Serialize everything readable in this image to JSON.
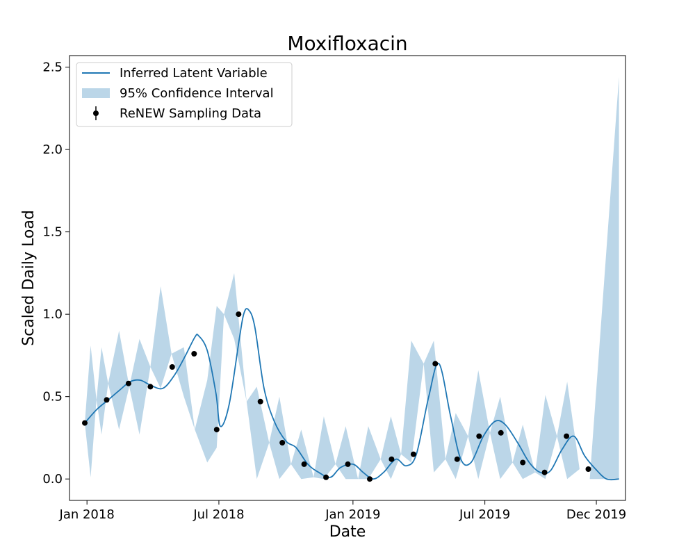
{
  "chart_data": {
    "type": "line",
    "title": "Moxifloxacin",
    "xlabel": "Date",
    "ylabel": "Scaled Daily Load",
    "x_range": [
      "2017-12-08",
      "2020-01-10"
    ],
    "ylim": [
      -0.13,
      2.57
    ],
    "grid": false,
    "legend_position": "top-left",
    "x_ticks": [
      {
        "date": "2018-01-01",
        "label": "Jan 2018"
      },
      {
        "date": "2018-07-01",
        "label": "Jul 2018"
      },
      {
        "date": "2019-01-01",
        "label": "Jan 2019"
      },
      {
        "date": "2019-07-01",
        "label": "Jul 2019"
      },
      {
        "date": "2019-12-01",
        "label": "Dec 2019"
      }
    ],
    "y_ticks": [
      {
        "value": 0.0,
        "label": "0.0"
      },
      {
        "value": 0.5,
        "label": "0.5"
      },
      {
        "value": 1.0,
        "label": "1.0"
      },
      {
        "value": 1.5,
        "label": "1.5"
      },
      {
        "value": 2.0,
        "label": "2.0"
      },
      {
        "value": 2.5,
        "label": "2.5"
      }
    ],
    "series": [
      {
        "name": "Inferred Latent Variable",
        "kind": "line",
        "color": "#1f77b4",
        "points": [
          [
            "2017-12-29",
            0.34
          ],
          [
            "2018-01-14",
            0.42
          ],
          [
            "2018-01-30",
            0.48
          ],
          [
            "2018-02-15",
            0.54
          ],
          [
            "2018-03-01",
            0.59
          ],
          [
            "2018-03-15",
            0.6
          ],
          [
            "2018-03-29",
            0.57
          ],
          [
            "2018-04-15",
            0.55
          ],
          [
            "2018-05-01",
            0.63
          ],
          [
            "2018-05-15",
            0.74
          ],
          [
            "2018-05-29",
            0.86
          ],
          [
            "2018-06-03",
            0.87
          ],
          [
            "2018-06-15",
            0.78
          ],
          [
            "2018-06-27",
            0.52
          ],
          [
            "2018-07-03",
            0.32
          ],
          [
            "2018-07-15",
            0.45
          ],
          [
            "2018-07-29",
            0.85
          ],
          [
            "2018-08-04",
            1.0
          ],
          [
            "2018-08-10",
            1.03
          ],
          [
            "2018-08-19",
            0.93
          ],
          [
            "2018-09-01",
            0.55
          ],
          [
            "2018-09-15",
            0.35
          ],
          [
            "2018-10-01",
            0.23
          ],
          [
            "2018-10-15",
            0.19
          ],
          [
            "2018-10-31",
            0.09
          ],
          [
            "2018-11-15",
            0.04
          ],
          [
            "2018-12-01",
            0.01
          ],
          [
            "2018-12-15",
            0.07
          ],
          [
            "2019-01-01",
            0.09
          ],
          [
            "2019-01-15",
            0.04
          ],
          [
            "2019-01-29",
            0.0
          ],
          [
            "2019-02-12",
            0.04
          ],
          [
            "2019-03-01",
            0.12
          ],
          [
            "2019-03-15",
            0.08
          ],
          [
            "2019-03-29",
            0.15
          ],
          [
            "2019-04-15",
            0.5
          ],
          [
            "2019-04-29",
            0.7
          ],
          [
            "2019-05-15",
            0.38
          ],
          [
            "2019-05-29",
            0.12
          ],
          [
            "2019-06-12",
            0.1
          ],
          [
            "2019-06-29",
            0.26
          ],
          [
            "2019-07-15",
            0.35
          ],
          [
            "2019-07-29",
            0.33
          ],
          [
            "2019-08-15",
            0.22
          ],
          [
            "2019-08-31",
            0.1
          ],
          [
            "2019-09-15",
            0.04
          ],
          [
            "2019-09-29",
            0.05
          ],
          [
            "2019-10-15",
            0.18
          ],
          [
            "2019-10-31",
            0.26
          ],
          [
            "2019-11-15",
            0.14
          ],
          [
            "2019-11-30",
            0.06
          ],
          [
            "2019-12-15",
            0.0
          ],
          [
            "2020-01-01",
            0.0
          ]
        ]
      },
      {
        "name": "95% Confidence Interval",
        "kind": "band",
        "color": "#1f77b4",
        "opacity": 0.3,
        "points": [
          [
            "2017-12-29",
            0.34,
            0.34
          ],
          [
            "2018-01-06",
            0.01,
            0.81
          ],
          [
            "2018-01-14",
            0.48,
            0.48
          ],
          [
            "2018-01-21",
            0.27,
            0.8
          ],
          [
            "2018-01-30",
            0.58,
            0.58
          ],
          [
            "2018-02-14",
            0.3,
            0.9
          ],
          [
            "2018-02-28",
            0.56,
            0.56
          ],
          [
            "2018-03-14",
            0.27,
            0.85
          ],
          [
            "2018-03-29",
            0.68,
            0.68
          ],
          [
            "2018-04-12",
            0.55,
            1.17
          ],
          [
            "2018-04-27",
            0.76,
            0.76
          ],
          [
            "2018-05-14",
            0.5,
            0.8
          ],
          [
            "2018-05-29",
            0.3,
            0.3
          ],
          [
            "2018-06-15",
            0.1,
            0.6
          ],
          [
            "2018-06-28",
            0.19,
            1.05
          ],
          [
            "2018-07-08",
            1.0,
            1.0
          ],
          [
            "2018-07-22",
            0.85,
            1.25
          ],
          [
            "2018-08-08",
            0.47,
            0.47
          ],
          [
            "2018-08-22",
            0.0,
            0.56
          ],
          [
            "2018-09-08",
            0.22,
            0.22
          ],
          [
            "2018-09-22",
            0.0,
            0.5
          ],
          [
            "2018-10-08",
            0.09,
            0.09
          ],
          [
            "2018-10-22",
            0.0,
            0.3
          ],
          [
            "2018-11-08",
            0.01,
            0.01
          ],
          [
            "2018-11-22",
            0.0,
            0.38
          ],
          [
            "2018-12-08",
            0.09,
            0.09
          ],
          [
            "2018-12-22",
            0.0,
            0.32
          ],
          [
            "2019-01-08",
            0.0,
            0.0
          ],
          [
            "2019-01-22",
            0.0,
            0.32
          ],
          [
            "2019-02-08",
            0.12,
            0.12
          ],
          [
            "2019-02-22",
            0.0,
            0.38
          ],
          [
            "2019-03-08",
            0.15,
            0.15
          ],
          [
            "2019-03-22",
            0.1,
            0.84
          ],
          [
            "2019-04-08",
            0.7,
            0.7
          ],
          [
            "2019-04-22",
            0.04,
            0.84
          ],
          [
            "2019-05-08",
            0.12,
            0.12
          ],
          [
            "2019-05-22",
            0.0,
            0.4
          ],
          [
            "2019-06-08",
            0.26,
            0.26
          ],
          [
            "2019-06-22",
            0.0,
            0.66
          ],
          [
            "2019-07-08",
            0.28,
            0.28
          ],
          [
            "2019-07-22",
            0.0,
            0.5
          ],
          [
            "2019-08-08",
            0.1,
            0.1
          ],
          [
            "2019-08-22",
            0.0,
            0.33
          ],
          [
            "2019-09-08",
            0.04,
            0.04
          ],
          [
            "2019-09-22",
            0.0,
            0.51
          ],
          [
            "2019-10-08",
            0.26,
            0.26
          ],
          [
            "2019-10-22",
            0.0,
            0.59
          ],
          [
            "2019-11-08",
            0.06,
            0.06
          ],
          [
            "2019-11-22",
            0.0,
            0.0
          ],
          [
            "2020-01-01",
            0.0,
            2.44
          ]
        ]
      },
      {
        "name": "ReNEW Sampling Data",
        "kind": "scatter",
        "color": "#000000",
        "points": [
          [
            "2017-12-29",
            0.34
          ],
          [
            "2018-01-28",
            0.48
          ],
          [
            "2018-02-27",
            0.58
          ],
          [
            "2018-03-29",
            0.56
          ],
          [
            "2018-04-28",
            0.68
          ],
          [
            "2018-05-28",
            0.76
          ],
          [
            "2018-06-28",
            0.3
          ],
          [
            "2018-07-28",
            1.0
          ],
          [
            "2018-08-27",
            0.47
          ],
          [
            "2018-09-26",
            0.22
          ],
          [
            "2018-10-26",
            0.09
          ],
          [
            "2018-11-25",
            0.01
          ],
          [
            "2018-12-25",
            0.09
          ],
          [
            "2019-01-24",
            0.0
          ],
          [
            "2019-02-23",
            0.12
          ],
          [
            "2019-03-25",
            0.15
          ],
          [
            "2019-04-24",
            0.7
          ],
          [
            "2019-05-24",
            0.12
          ],
          [
            "2019-06-23",
            0.26
          ],
          [
            "2019-07-23",
            0.28
          ],
          [
            "2019-08-22",
            0.1
          ],
          [
            "2019-09-21",
            0.04
          ],
          [
            "2019-10-21",
            0.26
          ],
          [
            "2019-11-20",
            0.06
          ]
        ]
      }
    ]
  }
}
